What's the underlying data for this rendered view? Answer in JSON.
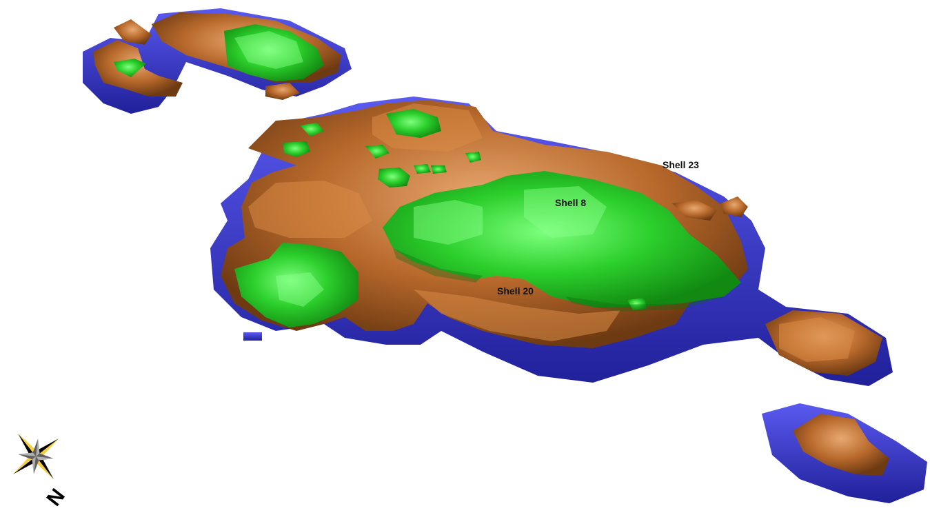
{
  "labels": {
    "shell_23": "Shell 23",
    "shell_8": "Shell 8",
    "shell_20": "Shell 20"
  },
  "north_arrow": {
    "letter": "N",
    "icon": "compass-rose-icon"
  },
  "colors": {
    "shell_23": "#3a3ad0",
    "shell_20": "#b8692c",
    "shell_8": "#2ccf2c",
    "background": "#ffffff"
  }
}
